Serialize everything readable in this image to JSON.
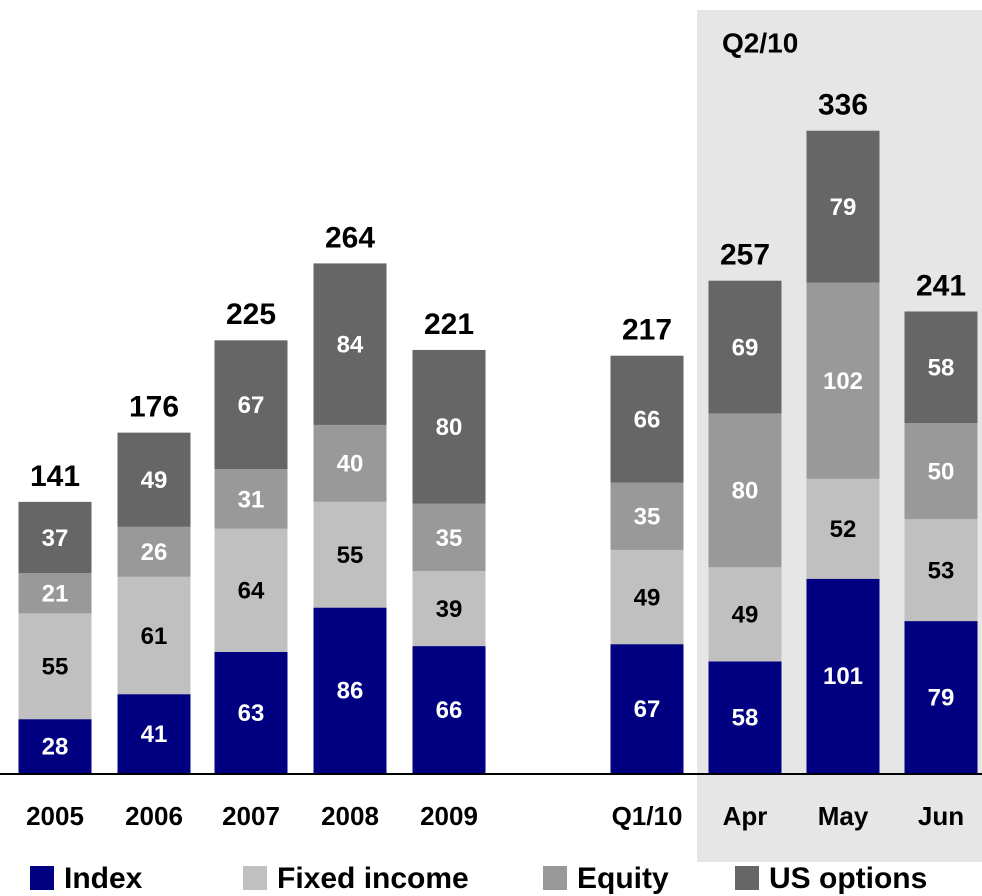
{
  "chart_data": {
    "type": "stacked-bar",
    "annotation": "Q2/10",
    "categories": [
      "2005",
      "2006",
      "2007",
      "2008",
      "2009",
      "Q1/10",
      "Apr",
      "May",
      "Jun"
    ],
    "series": [
      {
        "name": "Index",
        "color": "#000080",
        "values": [
          28,
          41,
          63,
          86,
          66,
          67,
          58,
          101,
          79
        ]
      },
      {
        "name": "Fixed income",
        "color": "#c0c0c0",
        "values": [
          55,
          61,
          64,
          55,
          39,
          49,
          49,
          52,
          53
        ]
      },
      {
        "name": "Equity",
        "color": "#999999",
        "values": [
          21,
          26,
          31,
          40,
          35,
          35,
          80,
          102,
          50
        ]
      },
      {
        "name": "US options",
        "color": "#666666",
        "values": [
          37,
          49,
          67,
          84,
          80,
          66,
          69,
          79,
          58
        ]
      }
    ],
    "totals": [
      141,
      176,
      225,
      264,
      221,
      217,
      257,
      336,
      241
    ]
  }
}
